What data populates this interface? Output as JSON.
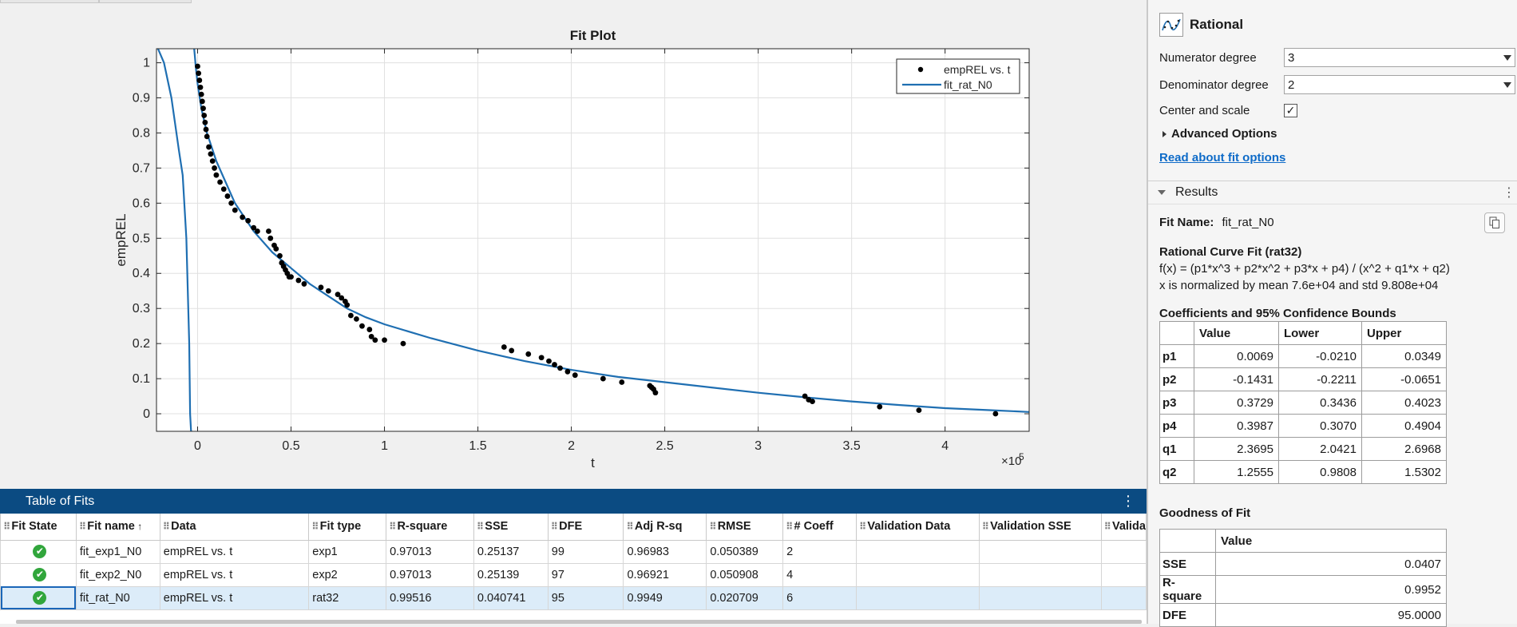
{
  "plot": {
    "title": "Fit Plot",
    "xlabel": "t",
    "ylabel": "empREL",
    "x_exponent": "×10",
    "x_exponent_power": "5",
    "legend": {
      "data_label": "empREL vs. t",
      "fit_label": "fit_rat_N0"
    },
    "colors": {
      "fit_line": "#1f6fb2",
      "data_points": "#000000",
      "plot_bg": "#ffffff",
      "grid": "#e0e0e0"
    }
  },
  "chart_data": {
    "type": "scatter",
    "title": "Fit Plot",
    "xlabel": "t",
    "ylabel": "empREL",
    "x_scale_note": "×10^5",
    "xlim": [
      -0.22,
      4.45
    ],
    "ylim": [
      -0.05,
      1.04
    ],
    "x_ticks": [
      "0",
      "0.5",
      "1",
      "1.5",
      "2",
      "2.5",
      "3",
      "3.5",
      "4"
    ],
    "y_ticks": [
      "0",
      "0.1",
      "0.2",
      "0.3",
      "0.4",
      "0.5",
      "0.6",
      "0.7",
      "0.8",
      "0.9",
      "1"
    ],
    "grid": true,
    "legend_position": "top-right",
    "series": [
      {
        "name": "empREL vs. t",
        "kind": "points",
        "x": [
          0.0,
          0.005,
          0.01,
          0.015,
          0.02,
          0.025,
          0.03,
          0.035,
          0.04,
          0.045,
          0.05,
          0.06,
          0.07,
          0.08,
          0.09,
          0.1,
          0.12,
          0.14,
          0.16,
          0.18,
          0.2,
          0.24,
          0.27,
          0.3,
          0.32,
          0.38,
          0.39,
          0.41,
          0.42,
          0.44,
          0.45,
          0.46,
          0.47,
          0.48,
          0.49,
          0.5,
          0.54,
          0.57,
          0.66,
          0.7,
          0.75,
          0.77,
          0.79,
          0.8,
          0.82,
          0.85,
          0.88,
          0.92,
          0.93,
          0.95,
          1.0,
          1.1,
          1.64,
          1.68,
          1.77,
          1.84,
          1.88,
          1.91,
          1.94,
          1.98,
          2.02,
          2.17,
          2.27,
          2.42,
          2.43,
          2.44,
          2.45,
          3.25,
          3.27,
          3.29,
          3.65,
          3.86,
          4.27
        ],
        "y": [
          0.99,
          0.97,
          0.95,
          0.93,
          0.91,
          0.89,
          0.87,
          0.85,
          0.83,
          0.81,
          0.79,
          0.76,
          0.74,
          0.72,
          0.7,
          0.68,
          0.66,
          0.64,
          0.62,
          0.6,
          0.58,
          0.56,
          0.55,
          0.53,
          0.52,
          0.52,
          0.5,
          0.48,
          0.47,
          0.45,
          0.43,
          0.42,
          0.41,
          0.4,
          0.39,
          0.39,
          0.38,
          0.37,
          0.36,
          0.35,
          0.34,
          0.33,
          0.32,
          0.31,
          0.28,
          0.27,
          0.25,
          0.24,
          0.22,
          0.21,
          0.21,
          0.2,
          0.19,
          0.18,
          0.17,
          0.16,
          0.15,
          0.14,
          0.13,
          0.12,
          0.11,
          0.1,
          0.09,
          0.08,
          0.075,
          0.07,
          0.06,
          0.05,
          0.04,
          0.035,
          0.02,
          0.01,
          0.0
        ]
      },
      {
        "name": "fit_rat_N0",
        "kind": "line",
        "x": [
          -0.22,
          -0.18,
          -0.14,
          -0.1,
          -0.08,
          -0.06,
          -0.045,
          -0.04,
          -0.035,
          -0.03
        ],
        "y": [
          1.05,
          1.0,
          0.9,
          0.75,
          0.68,
          0.5,
          0.2,
          0.0,
          -0.05,
          -0.05
        ]
      },
      {
        "name": "fit_rat_N0",
        "kind": "line",
        "x": [
          -0.02,
          -0.015,
          -0.01,
          0.0,
          0.02,
          0.05,
          0.1,
          0.15,
          0.2,
          0.3,
          0.4,
          0.5,
          0.6,
          0.7,
          0.8,
          0.9,
          1.0,
          1.25,
          1.5,
          1.75,
          2.0,
          2.25,
          2.5,
          2.75,
          3.0,
          3.25,
          3.5,
          3.75,
          4.0,
          4.25,
          4.45
        ],
        "y": [
          1.05,
          1.02,
          0.99,
          0.94,
          0.87,
          0.8,
          0.72,
          0.66,
          0.6,
          0.52,
          0.46,
          0.415,
          0.37,
          0.335,
          0.3,
          0.275,
          0.255,
          0.215,
          0.18,
          0.15,
          0.125,
          0.105,
          0.09,
          0.075,
          0.06,
          0.047,
          0.035,
          0.025,
          0.016,
          0.01,
          0.005
        ]
      }
    ]
  },
  "table_of_fits": {
    "title": "Table of Fits",
    "menu_icon": "vertical-dots-icon",
    "columns": [
      "Fit State",
      "Fit name",
      "Data",
      "Fit type",
      "R-square",
      "SSE",
      "DFE",
      "Adj R-sq",
      "RMSE",
      "# Coeff",
      "Validation Data",
      "Validation SSE",
      "Valida"
    ],
    "rows": [
      {
        "state": "✔",
        "name": "fit_exp1_N0",
        "data": "empREL vs. t",
        "type": "exp1",
        "rsq": "0.97013",
        "sse": "0.25137",
        "dfe": "99",
        "adjrsq": "0.96983",
        "rmse": "0.050389",
        "ncoeff": "2",
        "valdata": "",
        "valsse": "",
        "val": ""
      },
      {
        "state": "✔",
        "name": "fit_exp2_N0",
        "data": "empREL vs. t",
        "type": "exp2",
        "rsq": "0.97013",
        "sse": "0.25139",
        "dfe": "97",
        "adjrsq": "0.96921",
        "rmse": "0.050908",
        "ncoeff": "4",
        "valdata": "",
        "valsse": "",
        "val": ""
      },
      {
        "state": "✔",
        "name": "fit_rat_N0",
        "data": "empREL vs. t",
        "type": "rat32",
        "rsq": "0.99516",
        "sse": "0.040741",
        "dfe": "95",
        "adjrsq": "0.9949",
        "rmse": "0.020709",
        "ncoeff": "6",
        "valdata": "",
        "valsse": "",
        "val": ""
      }
    ],
    "selected_row": 2
  },
  "fit_options": {
    "fit_type": "Rational",
    "numerator_label": "Numerator degree",
    "numerator_value": "3",
    "denominator_label": "Denominator degree",
    "denominator_value": "2",
    "center_scale_label": "Center and scale",
    "center_scale_checked": "✓",
    "advanced_label": "Advanced Options",
    "read_link": "Read about fit options"
  },
  "results": {
    "section_label": "Results",
    "fit_name_label": "Fit Name:",
    "fit_name_value": "fit_rat_N0",
    "model_title": "Rational Curve Fit (rat32)",
    "model_equation": "f(x) = (p1*x^3 + p2*x^2 + p3*x + p4) / (x^2 + q1*x + q2)",
    "normalization": "x is normalized by mean 7.6e+04 and std 9.808e+04",
    "coef_heading": "Coefficients and 95% Confidence Bounds",
    "coef_columns": [
      "",
      "Value",
      "Lower",
      "Upper"
    ],
    "coefficients": [
      {
        "name": "p1",
        "value": "0.0069",
        "lower": "-0.0210",
        "upper": "0.0349"
      },
      {
        "name": "p2",
        "value": "-0.1431",
        "lower": "-0.2211",
        "upper": "-0.0651"
      },
      {
        "name": "p3",
        "value": "0.3729",
        "lower": "0.3436",
        "upper": "0.4023"
      },
      {
        "name": "p4",
        "value": "0.3987",
        "lower": "0.3070",
        "upper": "0.4904"
      },
      {
        "name": "q1",
        "value": "2.3695",
        "lower": "2.0421",
        "upper": "2.6968"
      },
      {
        "name": "q2",
        "value": "1.2555",
        "lower": "0.9808",
        "upper": "1.5302"
      }
    ],
    "gof_heading": "Goodness of Fit",
    "gof_columns": [
      "",
      "Value"
    ],
    "gof": [
      {
        "name": "SSE",
        "value": "0.0407"
      },
      {
        "name": "R-square",
        "value": "0.9952"
      },
      {
        "name": "DFE",
        "value": "95.0000"
      }
    ]
  }
}
